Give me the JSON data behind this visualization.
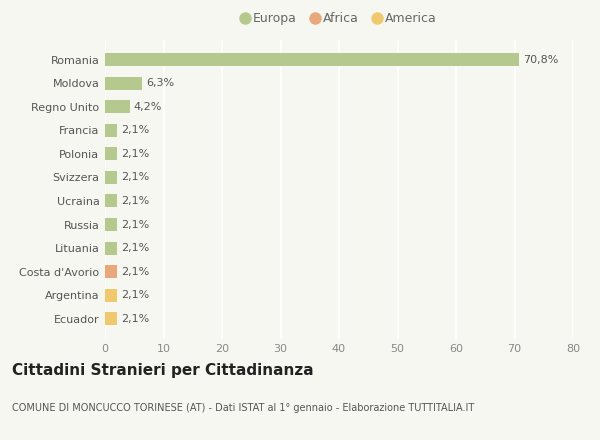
{
  "countries": [
    "Romania",
    "Moldova",
    "Regno Unito",
    "Francia",
    "Polonia",
    "Svizzera",
    "Ucraina",
    "Russia",
    "Lituania",
    "Costa d'Avorio",
    "Argentina",
    "Ecuador"
  ],
  "values": [
    70.8,
    6.3,
    4.2,
    2.1,
    2.1,
    2.1,
    2.1,
    2.1,
    2.1,
    2.1,
    2.1,
    2.1
  ],
  "labels": [
    "70,8%",
    "6,3%",
    "4,2%",
    "2,1%",
    "2,1%",
    "2,1%",
    "2,1%",
    "2,1%",
    "2,1%",
    "2,1%",
    "2,1%",
    "2,1%"
  ],
  "continents": [
    "Europa",
    "Europa",
    "Europa",
    "Europa",
    "Europa",
    "Europa",
    "Europa",
    "Europa",
    "Europa",
    "Africa",
    "America",
    "America"
  ],
  "colors": {
    "Europa": "#b5c98e",
    "Africa": "#e8a87c",
    "America": "#f0c96e"
  },
  "legend_order": [
    "Europa",
    "Africa",
    "America"
  ],
  "xlim": [
    0,
    80
  ],
  "xticks": [
    0,
    10,
    20,
    30,
    40,
    50,
    60,
    70,
    80
  ],
  "title": "Cittadini Stranieri per Cittadinanza",
  "subtitle": "COMUNE DI MONCUCCO TORINESE (AT) - Dati ISTAT al 1° gennaio - Elaborazione TUTTITALIA.IT",
  "background_color": "#f7f7f2",
  "grid_color": "#ffffff",
  "bar_height": 0.55,
  "label_fontsize": 8,
  "tick_fontsize": 8,
  "title_fontsize": 11,
  "subtitle_fontsize": 7
}
